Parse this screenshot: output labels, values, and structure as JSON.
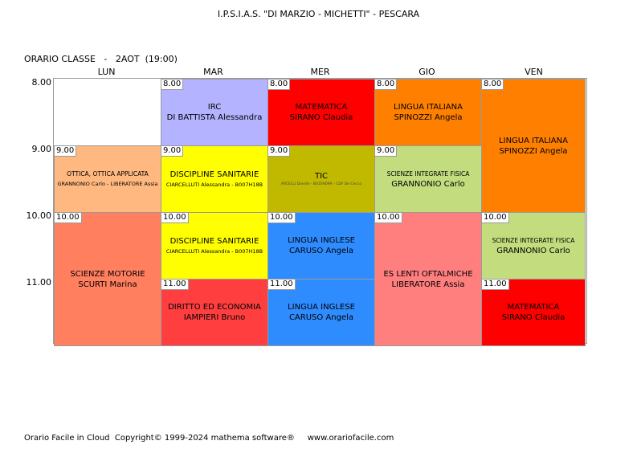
{
  "header": {
    "school": "I.P.S.I.A.S. \"DI MARZIO - MICHETTI\" - PESCARA",
    "class_line": "ORARIO CLASSE   -   2AOT  (19:00)"
  },
  "days": [
    "LUN",
    "MAR",
    "MER",
    "GIO",
    "VEN"
  ],
  "times": [
    "8.00",
    "9.00",
    "10.00",
    "11.00"
  ],
  "lessons": [
    {
      "day": "MAR",
      "start": "8.00",
      "slots": 1,
      "subject": "IRC",
      "teacher": "DI BATTISTA Alessandra",
      "color": "#b3b3ff",
      "start_label": "8.00"
    },
    {
      "day": "MER",
      "start": "8.00",
      "slots": 1,
      "subject": "MATEMATICA",
      "teacher": "SIRANO Claudia",
      "color": "#ff0000",
      "start_label": "8.00"
    },
    {
      "day": "GIO",
      "start": "8.00",
      "slots": 1,
      "subject": "LINGUA ITALIANA",
      "teacher": "SPINOZZI Angela",
      "color": "#ff8000",
      "start_label": "8.00"
    },
    {
      "day": "VEN",
      "start": "8.00",
      "slots": 2,
      "subject": "LINGUA ITALIANA",
      "teacher": "SPINOZZI Angela",
      "color": "#ff8000",
      "start_label": "8.00"
    },
    {
      "day": "LUN",
      "start": "9.00",
      "slots": 1,
      "subject": "OTTICA, OTTICA APPLICATA",
      "teacher": "GRANNONIO Carlo - LIBERATORE Assia",
      "color": "#ffb87f",
      "start_label": "9.00"
    },
    {
      "day": "MAR",
      "start": "9.00",
      "slots": 1,
      "subject": "DISCIPLINE SANITARIE",
      "teacher": "CIARCELLUTI Alessandra - B007H18B",
      "color": "#ffff00",
      "start_label": "9.00"
    },
    {
      "day": "MER",
      "start": "9.00",
      "slots": 1,
      "subject": "TIC",
      "teacher": "ARCELLI Davide - B010H09A - CDF De Cecco",
      "color": "#c0b900",
      "start_label": "9.00"
    },
    {
      "day": "GIO",
      "start": "9.00",
      "slots": 1,
      "subject": "SCIENZE INTEGRATE FISICA",
      "teacher": "GRANNONIO Carlo",
      "color": "#c3dd7e",
      "start_label": "9.00"
    },
    {
      "day": "LUN",
      "start": "10.00",
      "slots": 2,
      "subject": "SCIENZE MOTORIE",
      "teacher": "SCURTI Marina",
      "color": "#ff7f5f",
      "start_label": "10.00"
    },
    {
      "day": "MAR",
      "start": "10.00",
      "slots": 1,
      "subject": "DISCIPLINE SANITARIE",
      "teacher": "CIARCELLUTI Alessandra - B007H18B",
      "color": "#ffff00",
      "start_label": "10.00"
    },
    {
      "day": "MER",
      "start": "10.00",
      "slots": 1,
      "subject": "LINGUA INGLESE",
      "teacher": "CARUSO Angela",
      "color": "#2e8cff",
      "start_label": "10.00"
    },
    {
      "day": "GIO",
      "start": "10.00",
      "slots": 2,
      "subject": "ES LENTI OFTALMICHE",
      "teacher": "LIBERATORE Assia",
      "color": "#ff7f7f",
      "start_label": "10.00"
    },
    {
      "day": "VEN",
      "start": "10.00",
      "slots": 1,
      "subject": "SCIENZE INTEGRATE FISICA",
      "teacher": "GRANNONIO Carlo",
      "color": "#c3dd7e",
      "start_label": "10.00"
    },
    {
      "day": "MAR",
      "start": "11.00",
      "slots": 1,
      "subject": "DIRITTO ED ECONOMIA",
      "teacher": "IAMPIERI Bruno",
      "color": "#ff3f3f",
      "start_label": "11.00"
    },
    {
      "day": "MER",
      "start": "11.00",
      "slots": 1,
      "subject": "LINGUA INGLESE",
      "teacher": "CARUSO Angela",
      "color": "#2e8cff",
      "start_label": "11.00"
    },
    {
      "day": "VEN",
      "start": "11.00",
      "slots": 1,
      "subject": "MATEMATICA",
      "teacher": "SIRANO Claudia",
      "color": "#ff0000",
      "start_label": "11.00"
    }
  ],
  "footer": "Orario Facile in Cloud  Copyright© 1999-2024 mathema software®     www.orariofacile.com"
}
